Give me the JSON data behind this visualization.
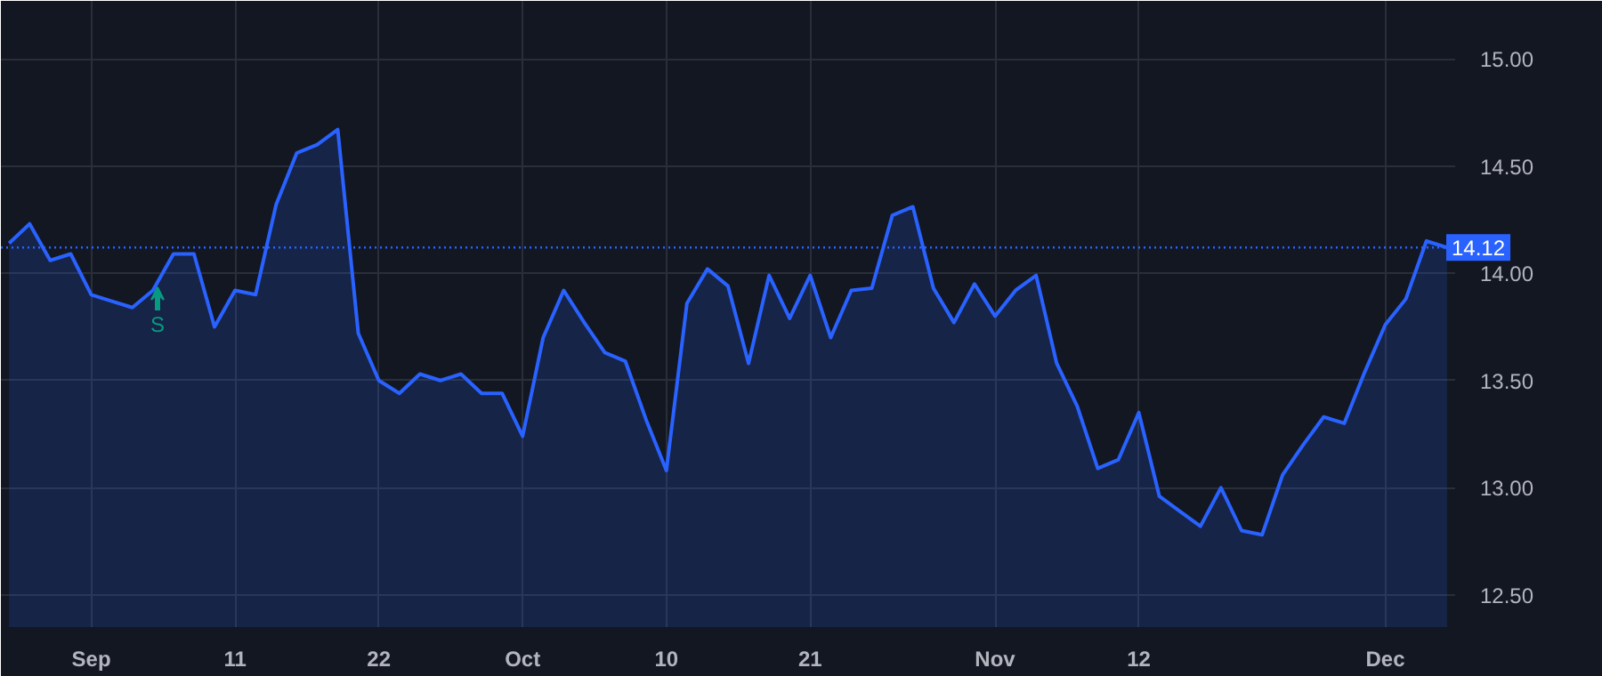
{
  "chart_data": {
    "type": "area",
    "categories": [
      null,
      null,
      null,
      null,
      "Sep",
      null,
      null,
      null,
      null,
      null,
      null,
      "11",
      null,
      null,
      null,
      null,
      null,
      null,
      "22",
      null,
      null,
      null,
      null,
      null,
      null,
      "Oct",
      null,
      null,
      null,
      null,
      null,
      null,
      "10",
      null,
      null,
      null,
      null,
      null,
      null,
      "21",
      null,
      null,
      null,
      null,
      null,
      null,
      null,
      null,
      "Nov",
      null,
      null,
      null,
      null,
      null,
      null,
      "12",
      null,
      null,
      null,
      null,
      null,
      null,
      null,
      null,
      null,
      null,
      null,
      "Dec",
      null,
      null,
      null
    ],
    "series": [
      {
        "color": "#2962ff",
        "values": [
          14.14,
          14.23,
          14.06,
          14.09,
          13.9,
          13.87,
          13.84,
          13.92,
          14.09,
          14.09,
          13.75,
          13.92,
          13.9,
          14.32,
          14.56,
          14.6,
          14.67,
          13.72,
          13.5,
          13.44,
          13.53,
          13.5,
          13.53,
          13.44,
          13.44,
          13.24,
          13.7,
          13.92,
          13.77,
          13.63,
          13.59,
          13.32,
          13.08,
          13.86,
          14.02,
          13.94,
          13.58,
          13.99,
          13.79,
          13.99,
          13.7,
          13.92,
          13.93,
          14.27,
          14.31,
          13.93,
          13.77,
          13.95,
          13.8,
          13.92,
          13.99,
          13.58,
          13.38,
          13.09,
          13.13,
          13.35,
          12.96,
          12.89,
          12.82,
          13.0,
          12.8,
          12.78,
          13.06,
          13.2,
          13.33,
          13.3,
          13.54,
          13.76,
          13.88,
          14.15,
          14.12
        ]
      }
    ],
    "ylim": [
      12.35,
      15.27
    ],
    "yticks": [
      {
        "value": 12.5,
        "label": "12.50"
      },
      {
        "value": 13,
        "label": "13.00"
      },
      {
        "value": 13.5,
        "label": "13.50"
      },
      {
        "value": 14,
        "label": "14.00"
      },
      {
        "value": 14.5,
        "label": "14.50"
      },
      {
        "value": 15,
        "label": "15.00"
      }
    ],
    "ref_lines": [
      {
        "axis": "y",
        "value": 14.12,
        "label": "14.12",
        "color": "#2962ff",
        "line_style": "dotted"
      }
    ],
    "annotations": [
      "S"
    ],
    "grid": true,
    "marker": "none",
    "line_style": "solid"
  }
}
